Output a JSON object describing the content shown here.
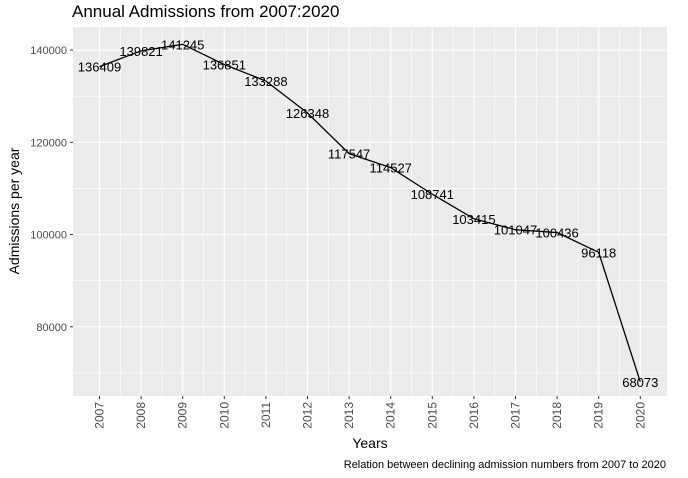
{
  "chart_data": {
    "type": "line",
    "title": "Annual Admissions from 2007:2020",
    "xlabel": "Years",
    "ylabel": "Admissions per year",
    "caption": "Relation between declining admission numbers from 2007 to 2020",
    "x": [
      "2007",
      "2008",
      "2009",
      "2010",
      "2011",
      "2012",
      "2013",
      "2014",
      "2015",
      "2016",
      "2017",
      "2018",
      "2019",
      "2020"
    ],
    "values": [
      136409,
      139821,
      141245,
      136851,
      133288,
      126348,
      117547,
      114527,
      108741,
      103415,
      101047,
      100436,
      96118,
      68073
    ],
    "ylim": [
      65000,
      145000
    ],
    "yticks": [
      80000,
      100000,
      120000,
      140000
    ],
    "ytick_labels": [
      "80000",
      "100000",
      "120000",
      "140000"
    ],
    "grid": true,
    "colors": {
      "panel": "#ebebeb",
      "grid": "#ffffff",
      "line": "#000000",
      "tick_text": "#4d4d4d",
      "tick_mark": "#333333"
    }
  }
}
